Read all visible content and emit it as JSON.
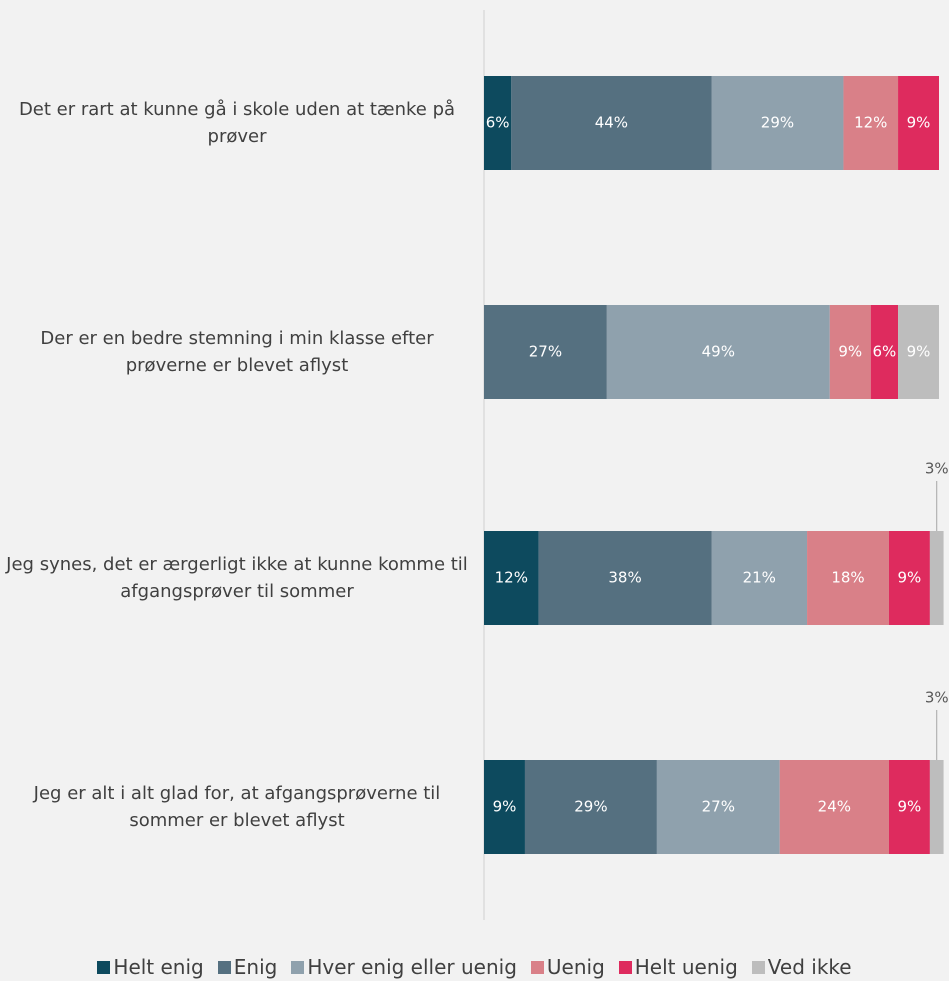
{
  "chart_data": {
    "type": "stacked-bar-horizontal",
    "categories": [
      "Det er rart at kunne gå i skole uden at tænke på prøver",
      "Der er en bedre stemning i min klasse efter prøverne er blevet aflyst",
      "Jeg synes, det er ærgerligt ikke at kunne komme til afgangsprøver til sommer",
      "Jeg er alt i alt glad for, at afgangsprøverne til sommer er blevet aflyst"
    ],
    "series": [
      {
        "name": "Helt enig",
        "color": "#0d4a5e",
        "values": [
          6,
          null,
          12,
          9
        ],
        "value_labels": [
          "6%",
          null,
          "12%",
          "9%"
        ]
      },
      {
        "name": "Enig",
        "color": "#557080",
        "values": [
          44,
          27,
          38,
          29
        ],
        "value_labels": [
          "44%",
          "27%",
          "38%",
          "29%"
        ]
      },
      {
        "name": "Hver enig eller uenig",
        "color": "#8fa1ad",
        "values": [
          29,
          49,
          21,
          27
        ],
        "value_labels": [
          "29%",
          "49%",
          "21%",
          "27%"
        ]
      },
      {
        "name": "Uenig",
        "color": "#d98088",
        "values": [
          12,
          9,
          18,
          24
        ],
        "value_labels": [
          "12%",
          "9%",
          "18%",
          "24%"
        ]
      },
      {
        "name": "Helt uenig",
        "color": "#de2b5e",
        "values": [
          9,
          6,
          9,
          9
        ],
        "value_labels": [
          "9%",
          "6%",
          "9%",
          "9%"
        ]
      },
      {
        "name": "Ved ikke",
        "color": "#bdbdbd",
        "values": [
          null,
          9,
          3,
          3
        ],
        "value_labels": [
          null,
          "9%",
          "3%",
          "3%"
        ]
      }
    ],
    "xlim": [
      0,
      100
    ],
    "legend": "bottom"
  }
}
